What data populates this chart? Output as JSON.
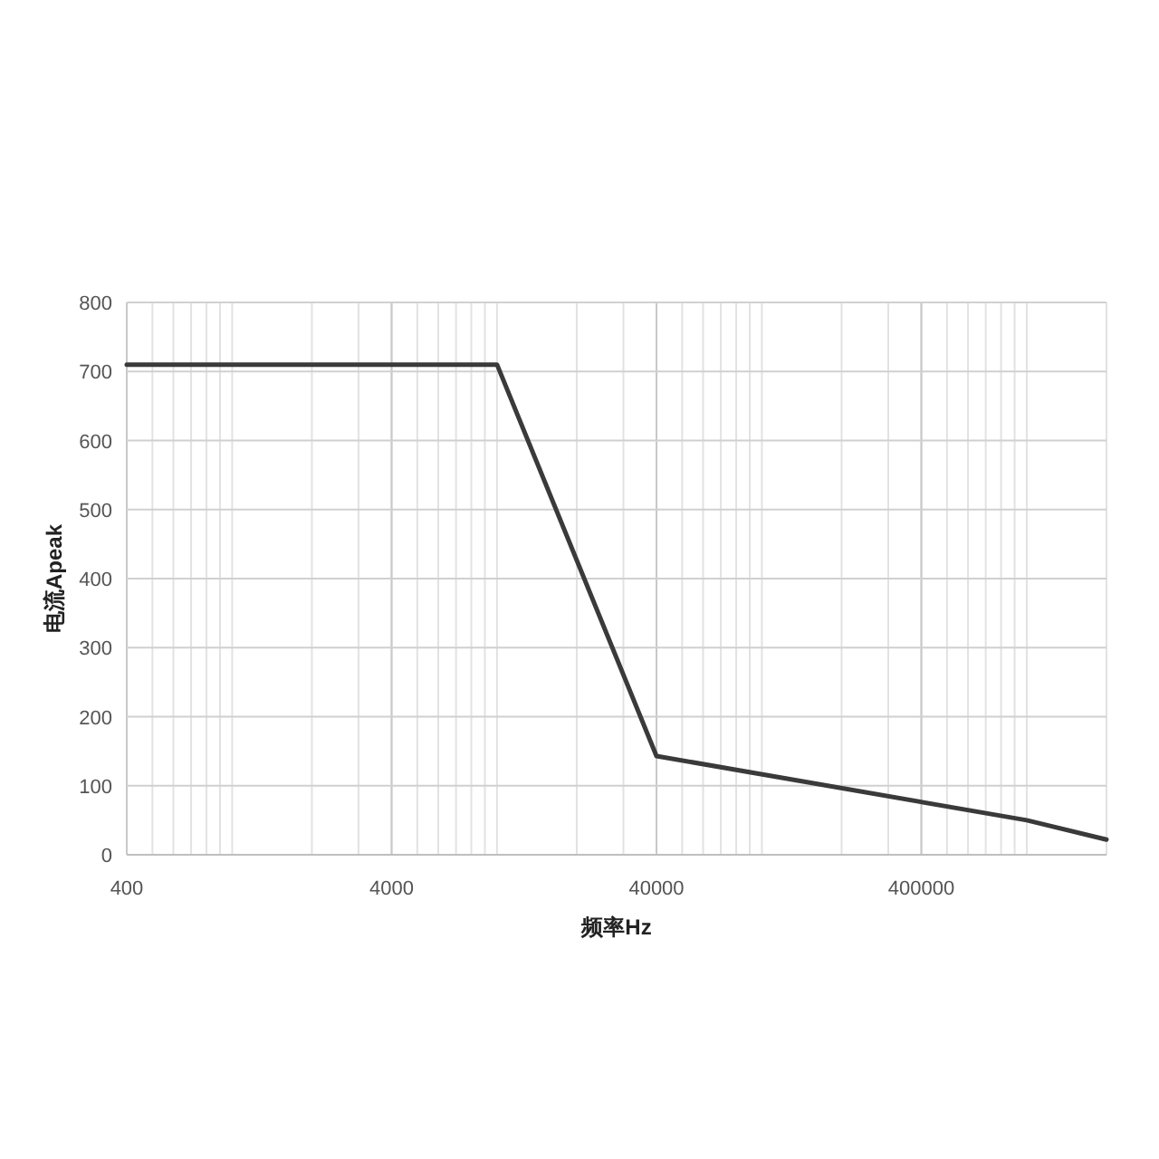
{
  "chart_data": {
    "type": "line",
    "xlabel": "频率Hz",
    "ylabel": "电流Apeak",
    "x": [
      400,
      10000,
      40000,
      1000000,
      2000000
    ],
    "series": [
      {
        "color": "#3a3a3a",
        "values": [
          710,
          710,
          143,
          50,
          22
        ]
      }
    ],
    "xlim": [
      400,
      2000000
    ],
    "ylim": [
      0,
      800
    ],
    "xticks": [
      400,
      4000,
      40000,
      400000
    ],
    "yticks": [
      0,
      100,
      200,
      300,
      400,
      500,
      600,
      700,
      800
    ],
    "log": "x",
    "grid": true,
    "marker": "none",
    "line_style": "solid"
  }
}
